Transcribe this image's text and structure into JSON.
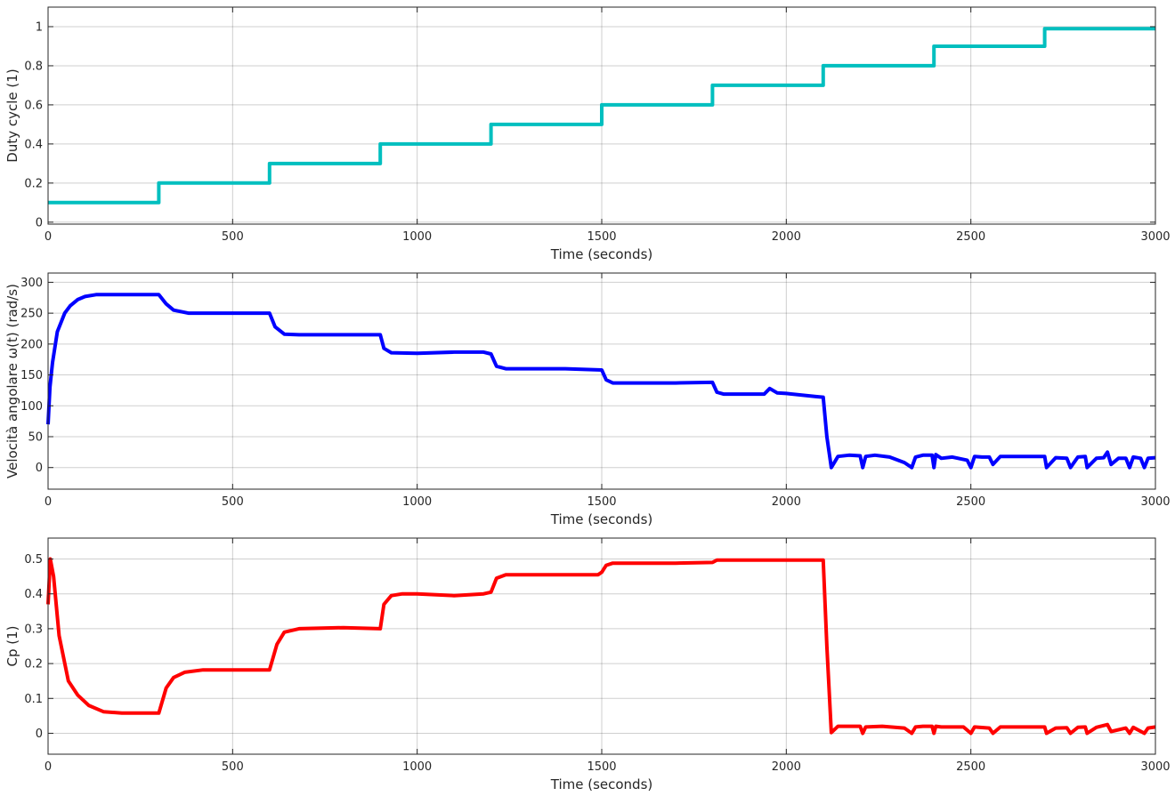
{
  "chart_data": [
    {
      "type": "line",
      "xlabel": "Time (seconds)",
      "ylabel": "Duty cycle (1)",
      "xlim": [
        0,
        3000
      ],
      "ylim": [
        -0.01,
        1.1
      ],
      "xticks": [
        0,
        500,
        1000,
        1500,
        2000,
        2500,
        3000
      ],
      "yticks": [
        0,
        0.2,
        0.4,
        0.6,
        0.8,
        1
      ],
      "xtick_labels": [
        "0",
        "500",
        "1000",
        "1500",
        "2000",
        "2500",
        "3000"
      ],
      "ytick_labels": [
        "0",
        "0.2",
        "0.4",
        "0.6",
        "0.8",
        "1"
      ],
      "grid": true,
      "series": [
        {
          "color": "#00bfbf",
          "x": [
            0,
            300,
            300,
            600,
            600,
            900,
            900,
            1200,
            1200,
            1500,
            1500,
            1800,
            1800,
            2100,
            2100,
            2400,
            2400,
            2700,
            2700,
            3000
          ],
          "y": [
            0.1,
            0.1,
            0.2,
            0.2,
            0.3,
            0.3,
            0.4,
            0.4,
            0.5,
            0.5,
            0.6,
            0.6,
            0.7,
            0.7,
            0.8,
            0.8,
            0.9,
            0.9,
            0.99,
            0.99
          ]
        }
      ]
    },
    {
      "type": "line",
      "xlabel": "Time (seconds)",
      "ylabel": "Velocità angolare ω(t) (rad/s)",
      "xlim": [
        0,
        3000
      ],
      "ylim": [
        -35,
        315
      ],
      "xticks": [
        0,
        500,
        1000,
        1500,
        2000,
        2500,
        3000
      ],
      "yticks": [
        0,
        50,
        100,
        150,
        200,
        250,
        300
      ],
      "xtick_labels": [
        "0",
        "500",
        "1000",
        "1500",
        "2000",
        "2500",
        "3000"
      ],
      "ytick_labels": [
        "0",
        "50",
        "100",
        "150",
        "200",
        "250",
        "300"
      ],
      "grid": true,
      "series": [
        {
          "color": "#0000ff",
          "x": [
            0,
            5,
            12,
            25,
            45,
            60,
            80,
            100,
            130,
            180,
            250,
            300,
            320,
            340,
            380,
            450,
            550,
            600,
            615,
            640,
            680,
            800,
            900,
            910,
            930,
            1000,
            1100,
            1180,
            1200,
            1215,
            1240,
            1300,
            1400,
            1500,
            1512,
            1530,
            1600,
            1700,
            1800,
            1812,
            1830,
            1900,
            1940,
            1955,
            1975,
            2000,
            2080,
            2100,
            2110,
            2122,
            2140,
            2170,
            2200,
            2207,
            2215,
            2240,
            2280,
            2320,
            2340,
            2350,
            2370,
            2395,
            2400,
            2405,
            2420,
            2450,
            2490,
            2500,
            2510,
            2530,
            2550,
            2560,
            2580,
            2640,
            2700,
            2705,
            2730,
            2760,
            2770,
            2790,
            2810,
            2815,
            2840,
            2860,
            2870,
            2880,
            2900,
            2920,
            2930,
            2940,
            2960,
            2970,
            2980,
            3000
          ],
          "y": [
            70,
            130,
            170,
            220,
            250,
            262,
            272,
            277,
            280,
            280,
            280,
            280,
            265,
            255,
            250,
            250,
            250,
            250,
            228,
            216,
            215,
            215,
            215,
            193,
            186,
            185,
            187,
            187,
            184,
            164,
            160,
            160,
            160,
            158,
            142,
            137,
            137,
            137,
            138,
            122,
            119,
            119,
            119,
            128,
            121,
            120,
            115,
            114,
            50,
            0,
            18,
            20,
            19,
            0,
            18,
            20,
            17,
            8,
            0,
            17,
            20,
            20,
            0,
            21,
            15,
            17,
            12,
            0,
            18,
            17,
            17,
            5,
            18,
            18,
            18,
            0,
            16,
            15,
            0,
            17,
            18,
            0,
            15,
            16,
            25,
            5,
            15,
            15,
            0,
            17,
            15,
            0,
            15,
            16
          ]
        }
      ]
    },
    {
      "type": "line",
      "xlabel": "Time (seconds)",
      "ylabel": "Cp (1)",
      "xlim": [
        0,
        3000
      ],
      "ylim": [
        -0.06,
        0.56
      ],
      "xticks": [
        0,
        500,
        1000,
        1500,
        2000,
        2500,
        3000
      ],
      "yticks": [
        0,
        0.1,
        0.2,
        0.3,
        0.4,
        0.5
      ],
      "xtick_labels": [
        "0",
        "500",
        "1000",
        "1500",
        "2000",
        "2500",
        "3000"
      ],
      "ytick_labels": [
        "0",
        "0.1",
        "0.2",
        "0.3",
        "0.4",
        "0.5"
      ],
      "grid": true,
      "series": [
        {
          "color": "#ff0000",
          "x": [
            0,
            6,
            15,
            30,
            55,
            80,
            110,
            150,
            200,
            300,
            320,
            340,
            370,
            420,
            500,
            600,
            620,
            640,
            680,
            800,
            900,
            910,
            930,
            960,
            1000,
            1100,
            1180,
            1200,
            1215,
            1240,
            1300,
            1400,
            1490,
            1500,
            1512,
            1530,
            1600,
            1700,
            1800,
            1812,
            1830,
            1900,
            2000,
            2100,
            2110,
            2122,
            2140,
            2180,
            2200,
            2207,
            2215,
            2260,
            2320,
            2340,
            2350,
            2370,
            2395,
            2400,
            2405,
            2420,
            2480,
            2500,
            2510,
            2550,
            2560,
            2580,
            2650,
            2700,
            2705,
            2730,
            2760,
            2770,
            2790,
            2810,
            2815,
            2840,
            2870,
            2880,
            2920,
            2930,
            2940,
            2970,
            2980,
            3000
          ],
          "y": [
            0.37,
            0.5,
            0.45,
            0.28,
            0.15,
            0.11,
            0.08,
            0.062,
            0.058,
            0.058,
            0.13,
            0.16,
            0.175,
            0.182,
            0.182,
            0.182,
            0.255,
            0.29,
            0.3,
            0.303,
            0.3,
            0.37,
            0.395,
            0.4,
            0.4,
            0.395,
            0.4,
            0.405,
            0.445,
            0.455,
            0.455,
            0.455,
            0.455,
            0.462,
            0.482,
            0.488,
            0.488,
            0.488,
            0.49,
            0.497,
            0.497,
            0.497,
            0.497,
            0.497,
            0.25,
            0.002,
            0.02,
            0.02,
            0.02,
            0.0,
            0.018,
            0.02,
            0.015,
            0.0,
            0.018,
            0.02,
            0.02,
            0.0,
            0.02,
            0.018,
            0.018,
            0.0,
            0.018,
            0.015,
            0.0,
            0.018,
            0.018,
            0.018,
            0.0,
            0.015,
            0.016,
            0.0,
            0.017,
            0.018,
            0.0,
            0.017,
            0.025,
            0.005,
            0.015,
            0.0,
            0.017,
            0.0,
            0.015,
            0.018
          ]
        }
      ]
    }
  ]
}
